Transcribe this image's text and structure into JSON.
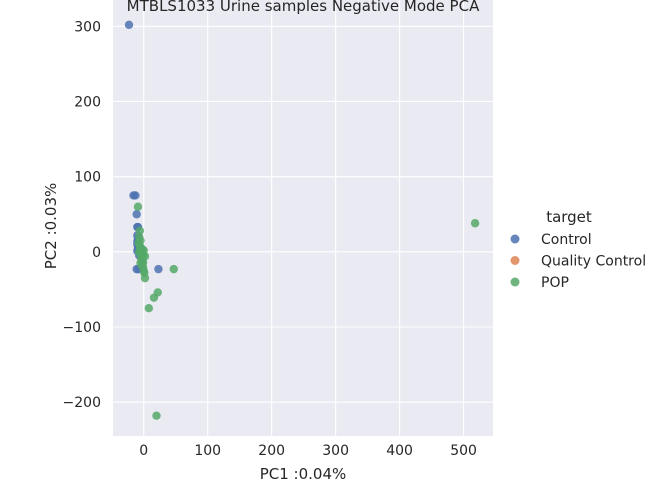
{
  "chart_data": {
    "type": "scatter",
    "title": "MTBLS1033 Urine samples Negative Mode PCA",
    "xlabel": "PC1 :0.04%",
    "ylabel": "PC2 :0.03%",
    "xlim": [
      -48,
      546
    ],
    "ylim": [
      -245,
      335
    ],
    "xticks": [
      0,
      100,
      200,
      300,
      400,
      500
    ],
    "xtick_labels": [
      "0",
      "100",
      "200",
      "300",
      "400",
      "500"
    ],
    "yticks": [
      -200,
      -100,
      0,
      100,
      200,
      300
    ],
    "ytick_labels": [
      "−200",
      "−100",
      "0",
      "100",
      "200",
      "300"
    ],
    "grid": true,
    "background": "#eaeaf2",
    "legend": {
      "title": "target",
      "placement": "right"
    },
    "series": [
      {
        "name": "Control",
        "color": "#4c72b0",
        "points": [
          [
            -23,
            302
          ],
          [
            -16,
            75
          ],
          [
            -13,
            75
          ],
          [
            -11,
            50
          ],
          [
            -10,
            33
          ],
          [
            -9,
            33
          ],
          [
            -10,
            22
          ],
          [
            -9,
            18
          ],
          [
            -10,
            14
          ],
          [
            -10,
            10
          ],
          [
            -9,
            5
          ],
          [
            -10,
            1
          ],
          [
            -11,
            -23
          ],
          [
            -8,
            -23
          ],
          [
            23,
            -23
          ],
          [
            -6,
            -2
          ],
          [
            -7,
            -5
          ]
        ]
      },
      {
        "name": "Quality Control",
        "color": "#dd8452",
        "points": []
      },
      {
        "name": "POP",
        "color": "#55a868",
        "points": [
          [
            -9,
            60
          ],
          [
            -6,
            28
          ],
          [
            -7,
            20
          ],
          [
            -5,
            15
          ],
          [
            -8,
            12
          ],
          [
            -6,
            8
          ],
          [
            -4,
            5
          ],
          [
            -2,
            3
          ],
          [
            0,
            2
          ],
          [
            -3,
            0
          ],
          [
            -7,
            -1
          ],
          [
            -1,
            -4
          ],
          [
            2,
            -6
          ],
          [
            -4,
            -9
          ],
          [
            -2,
            -12
          ],
          [
            -5,
            -15
          ],
          [
            -3,
            -18
          ],
          [
            -1,
            -20
          ],
          [
            0,
            -25
          ],
          [
            1,
            -28
          ],
          [
            2,
            -35
          ],
          [
            47,
            -23
          ],
          [
            22,
            -54
          ],
          [
            16,
            -61
          ],
          [
            8,
            -75
          ],
          [
            20,
            -218
          ],
          [
            518,
            38
          ],
          [
            -1,
            -14
          ],
          [
            -6,
            2
          ],
          [
            -3,
            -6
          ]
        ]
      }
    ]
  }
}
